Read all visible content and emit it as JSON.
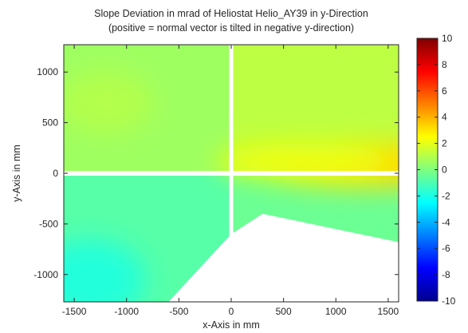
{
  "chart_data": {
    "type": "heatmap",
    "title": [
      "Slope Deviation in mrad of Heliostat Helio_AY39 in y-Direction",
      "(positive = normal vector is tilted in negative y-direction)"
    ],
    "xlabel": "x-Axis in mm",
    "ylabel": "y-Axis in mm",
    "xlim": [
      -1600,
      1600
    ],
    "ylim": [
      -1270,
      1270
    ],
    "x_ticks": [
      -1500,
      -1000,
      -500,
      0,
      500,
      1000,
      1500
    ],
    "x_tick_labels": [
      "-1500",
      "-1000",
      "-500",
      "0",
      "500",
      "1000",
      "1500"
    ],
    "y_ticks": [
      -1000,
      -500,
      0,
      500,
      1000
    ],
    "y_tick_labels": [
      "-1000",
      "-500",
      "0",
      "500",
      "1000"
    ],
    "colorbar": {
      "range": [
        -10,
        10
      ],
      "colormap": "jet",
      "ticks": [
        -10,
        -8,
        -6,
        -4,
        -2,
        0,
        2,
        4,
        6,
        8,
        10
      ],
      "tick_labels": [
        "-10",
        "-8",
        "-6",
        "-4",
        "-2",
        "0",
        "2",
        "4",
        "6",
        "8",
        "10"
      ]
    },
    "grid": false,
    "surface_gaps_mm": {
      "vertical_at_x": 0,
      "horizontal_at_y": 0
    },
    "missing_region_polygon_mm": [
      [
        -600,
        -1270
      ],
      [
        0,
        -600
      ],
      [
        300,
        -400
      ],
      [
        1600,
        -680
      ],
      [
        1600,
        -1270
      ]
    ],
    "value_regions": [
      {
        "area": "upper-left facet",
        "typical_value": 0.6
      },
      {
        "area": "upper-right facet",
        "typical_value": 1.2
      },
      {
        "area": "upper-right facet lower edge near x=1500",
        "typical_value": 3.2
      },
      {
        "area": "lower-left facet",
        "typical_value": -0.8
      },
      {
        "area": "lower-left facet bottom-left corner",
        "typical_value": -1.8
      },
      {
        "area": "lower-right facet",
        "typical_value": -0.4
      }
    ]
  }
}
